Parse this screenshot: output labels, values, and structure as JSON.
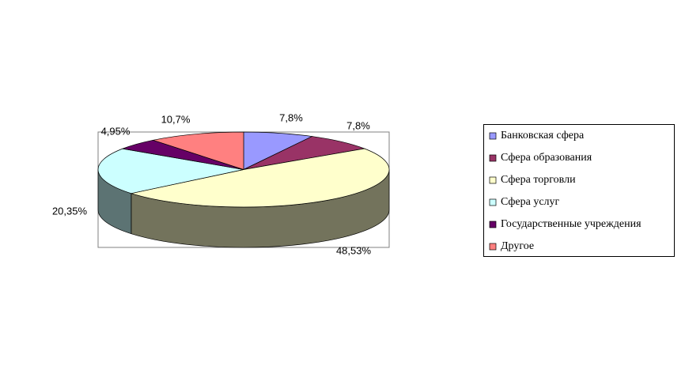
{
  "chart_data": {
    "type": "pie3d",
    "categories": [
      "Банковская сфера",
      "Сфера образования",
      "Сфера торговли",
      "Сфера услуг",
      "Государственные учреждения",
      "Другое"
    ],
    "values": [
      7.8,
      7.8,
      48.53,
      20.35,
      4.95,
      10.7
    ],
    "value_labels": [
      "7,8%",
      "7,8%",
      "48,53%",
      "20,35%",
      "4,95%",
      "10,7%"
    ],
    "colors": [
      "#9999ff",
      "#993366",
      "#ffffcc",
      "#ccffff",
      "#660066",
      "#ff8080"
    ],
    "legend": "right"
  }
}
